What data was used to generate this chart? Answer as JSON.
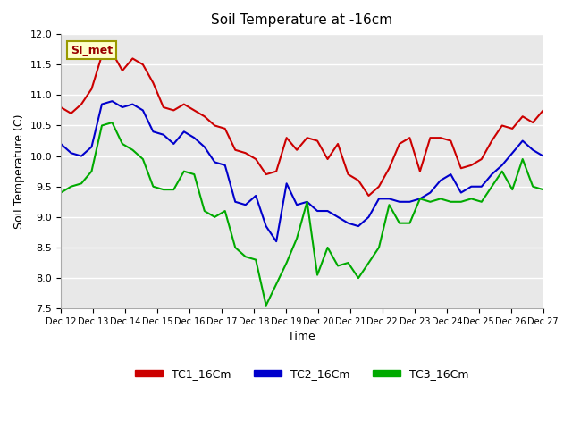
{
  "title": "Soil Temperature at -16cm",
  "ylabel": "Soil Temperature (C)",
  "xlabel": "Time",
  "ylim": [
    7.5,
    12.0
  ],
  "background_color": "#ffffff",
  "plot_bg_color": "#e8e8e8",
  "grid_color": "#ffffff",
  "annotation_text": "SI_met",
  "annotation_bg": "#ffffcc",
  "annotation_border": "#999900",
  "annotation_text_color": "#990000",
  "x_tick_labels": [
    "Dec 12",
    "Dec 13",
    "Dec 14",
    "Dec 15",
    "Dec 16",
    "Dec 17",
    "Dec 18",
    "Dec 19",
    "Dec 20",
    "Dec 21",
    "Dec 22",
    "Dec 23",
    "Dec 24",
    "Dec 25",
    "Dec 26",
    "Dec 27"
  ],
  "legend_labels": [
    "TC1_16Cm",
    "TC2_16Cm",
    "TC3_16Cm"
  ],
  "legend_colors": [
    "#cc0000",
    "#0000cc",
    "#00aa00"
  ],
  "line_width": 1.5,
  "tc1": [
    10.8,
    10.7,
    10.85,
    11.1,
    11.65,
    11.7,
    11.4,
    11.6,
    11.5,
    11.2,
    10.8,
    10.75,
    10.85,
    10.75,
    10.65,
    10.5,
    10.45,
    10.1,
    10.05,
    9.95,
    9.7,
    9.75,
    10.3,
    10.1,
    10.3,
    10.25,
    9.95,
    10.2,
    9.7,
    9.6,
    9.35,
    9.5,
    9.8,
    10.2,
    10.3,
    9.75,
    10.3,
    10.3,
    10.25,
    9.8,
    9.85,
    9.95,
    10.25,
    10.5,
    10.45,
    10.65,
    10.55,
    10.75
  ],
  "tc2": [
    10.2,
    10.05,
    10.0,
    10.15,
    10.85,
    10.9,
    10.8,
    10.85,
    10.75,
    10.4,
    10.35,
    10.2,
    10.4,
    10.3,
    10.15,
    9.9,
    9.85,
    9.25,
    9.2,
    9.35,
    8.85,
    8.6,
    9.55,
    9.2,
    9.25,
    9.1,
    9.1,
    9.0,
    8.9,
    8.85,
    9.0,
    9.3,
    9.3,
    9.25,
    9.25,
    9.3,
    9.4,
    9.6,
    9.7,
    9.4,
    9.5,
    9.5,
    9.7,
    9.85,
    10.05,
    10.25,
    10.1,
    10.0
  ],
  "tc3": [
    9.4,
    9.5,
    9.55,
    9.75,
    10.5,
    10.55,
    10.2,
    10.1,
    9.95,
    9.5,
    9.45,
    9.45,
    9.75,
    9.7,
    9.1,
    9.0,
    9.1,
    8.5,
    8.35,
    8.3,
    7.55,
    7.9,
    8.25,
    8.65,
    9.25,
    8.05,
    8.5,
    8.2,
    8.25,
    8.0,
    8.25,
    8.5,
    9.2,
    8.9,
    8.9,
    9.3,
    9.25,
    9.3,
    9.25,
    9.25,
    9.3,
    9.25,
    9.5,
    9.75,
    9.45,
    9.95,
    9.5,
    9.45
  ]
}
